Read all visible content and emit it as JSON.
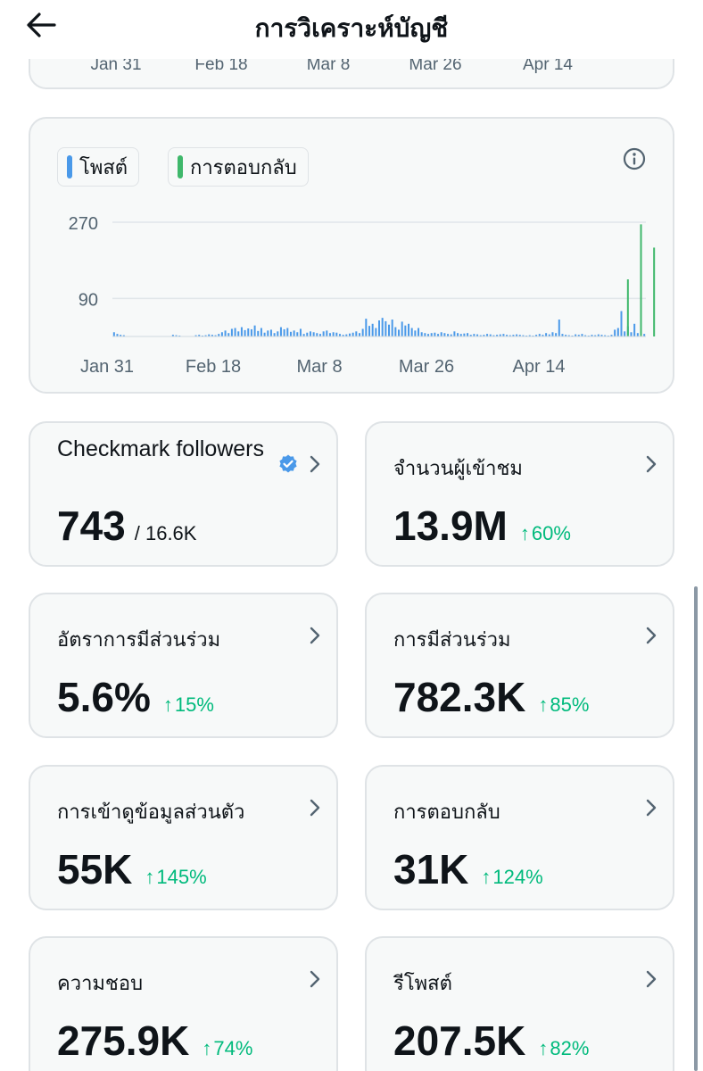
{
  "header": {
    "title": "การวิเคราะห์บัญชี",
    "back_icon": "arrow-left-icon"
  },
  "top_chart_ticks": [
    "Jan 31",
    "Feb 18",
    "Mar 8",
    "Mar 26",
    "Apr 14"
  ],
  "legend": [
    {
      "label": "โพสต์",
      "color": "#4a99e9"
    },
    {
      "label": "การตอบกลับ",
      "color": "#3fb86b"
    }
  ],
  "chart_data": {
    "type": "bar",
    "x_ticks": [
      "Jan 31",
      "Feb 18",
      "Mar 8",
      "Mar 26",
      "Apr 14"
    ],
    "y_ticks": [
      270,
      90
    ],
    "ylim": [
      0,
      300
    ],
    "grid": true,
    "series": [
      {
        "name": "โพสต์",
        "color": "#4a99e9",
        "values": [
          10,
          6,
          4,
          3,
          0,
          0,
          0,
          0,
          0,
          0,
          0,
          0,
          0,
          0,
          0,
          0,
          0,
          0,
          4,
          3,
          2,
          0,
          0,
          0,
          0,
          3,
          4,
          2,
          3,
          5,
          4,
          3,
          6,
          10,
          14,
          8,
          18,
          20,
          12,
          22,
          15,
          19,
          17,
          26,
          13,
          20,
          9,
          14,
          16,
          8,
          12,
          22,
          17,
          20,
          11,
          14,
          10,
          18,
          6,
          9,
          12,
          10,
          8,
          6,
          12,
          14,
          8,
          10,
          9,
          6,
          4,
          5,
          7,
          9,
          12,
          8,
          18,
          42,
          25,
          30,
          20,
          38,
          44,
          36,
          28,
          40,
          22,
          16,
          35,
          26,
          30,
          20,
          14,
          20,
          10,
          8,
          6,
          8,
          9,
          6,
          10,
          8,
          6,
          5,
          12,
          8,
          6,
          7,
          8,
          4,
          6,
          5,
          3,
          4,
          6,
          5,
          3,
          4,
          5,
          6,
          4,
          3,
          4,
          5,
          4,
          3,
          2,
          3,
          2,
          4,
          6,
          4,
          8,
          5,
          10,
          8,
          40,
          6,
          4,
          3,
          2,
          5,
          4,
          6,
          3,
          2,
          4,
          3,
          5,
          4,
          3,
          2,
          4,
          16,
          20,
          60,
          12,
          24,
          10,
          30,
          8,
          14,
          6
        ]
      },
      {
        "name": "การตอบกลับ",
        "color": "#3fb86b",
        "values": [
          0,
          0,
          0,
          0,
          0,
          0,
          0,
          0,
          0,
          0,
          0,
          0,
          0,
          0,
          0,
          0,
          0,
          0,
          0,
          0,
          0,
          0,
          0,
          0,
          0,
          0,
          0,
          0,
          0,
          0,
          0,
          0,
          0,
          0,
          0,
          0,
          0,
          0,
          0,
          0,
          0,
          0,
          0,
          0,
          0,
          0,
          0,
          0,
          0,
          0,
          0,
          0,
          0,
          0,
          0,
          0,
          0,
          0,
          0,
          0,
          0,
          0,
          0,
          0,
          0,
          0,
          0,
          0,
          0,
          0,
          0,
          0,
          0,
          0,
          0,
          0,
          0,
          0,
          0,
          0,
          0,
          0,
          0,
          0,
          0,
          0,
          0,
          0,
          0,
          0,
          0,
          0,
          0,
          0,
          0,
          0,
          0,
          0,
          0,
          0,
          0,
          0,
          0,
          0,
          0,
          0,
          0,
          0,
          0,
          0,
          0,
          0,
          0,
          0,
          0,
          0,
          0,
          0,
          0,
          0,
          0,
          0,
          0,
          0,
          0,
          0,
          0,
          0,
          0,
          0,
          0,
          0,
          0,
          0,
          0,
          0,
          0,
          0,
          0,
          0,
          0,
          0,
          0,
          0,
          0,
          0,
          0,
          0,
          0,
          0,
          0,
          0,
          0,
          0,
          0,
          0,
          0,
          135,
          0,
          0,
          0,
          265,
          0,
          0,
          0,
          210
        ]
      }
    ]
  },
  "stats": [
    {
      "id": "checkmark-followers",
      "label": "Checkmark followers",
      "value": "743",
      "sub": "/ 16.6K",
      "change": "",
      "verified": true
    },
    {
      "id": "impressions",
      "label": "จำนวนผู้เข้าชม",
      "value": "13.9M",
      "sub": "",
      "change": "60%"
    },
    {
      "id": "engagement-rate",
      "label": "อัตราการมีส่วนร่วม",
      "value": "5.6%",
      "sub": "",
      "change": "15%"
    },
    {
      "id": "engagements",
      "label": "การมีส่วนร่วม",
      "value": "782.3K",
      "sub": "",
      "change": "85%"
    },
    {
      "id": "profile-visits",
      "label": "การเข้าดูข้อมูลส่วนตัว",
      "value": "55K",
      "sub": "",
      "change": "145%"
    },
    {
      "id": "replies",
      "label": "การตอบกลับ",
      "value": "31K",
      "sub": "",
      "change": "124%"
    },
    {
      "id": "likes",
      "label": "ความชอบ",
      "value": "275.9K",
      "sub": "",
      "change": "74%"
    },
    {
      "id": "reposts",
      "label": "รีโพสต์",
      "value": "207.5K",
      "sub": "",
      "change": "82%"
    }
  ]
}
